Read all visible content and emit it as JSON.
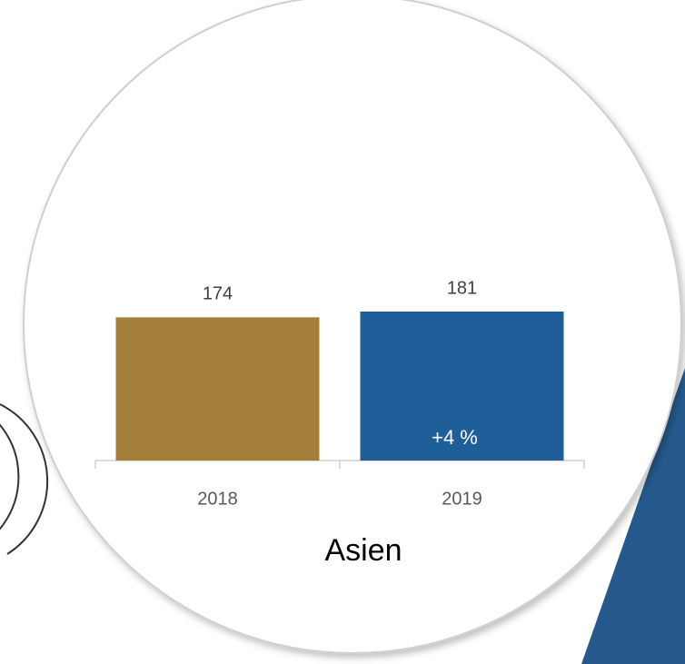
{
  "chart_data": {
    "type": "bar",
    "title": "Asien",
    "categories": [
      "2018",
      "2019"
    ],
    "values": [
      174,
      181
    ],
    "colors": [
      "#a47f3a",
      "#1f5f99"
    ],
    "annotation": "+4 %"
  }
}
